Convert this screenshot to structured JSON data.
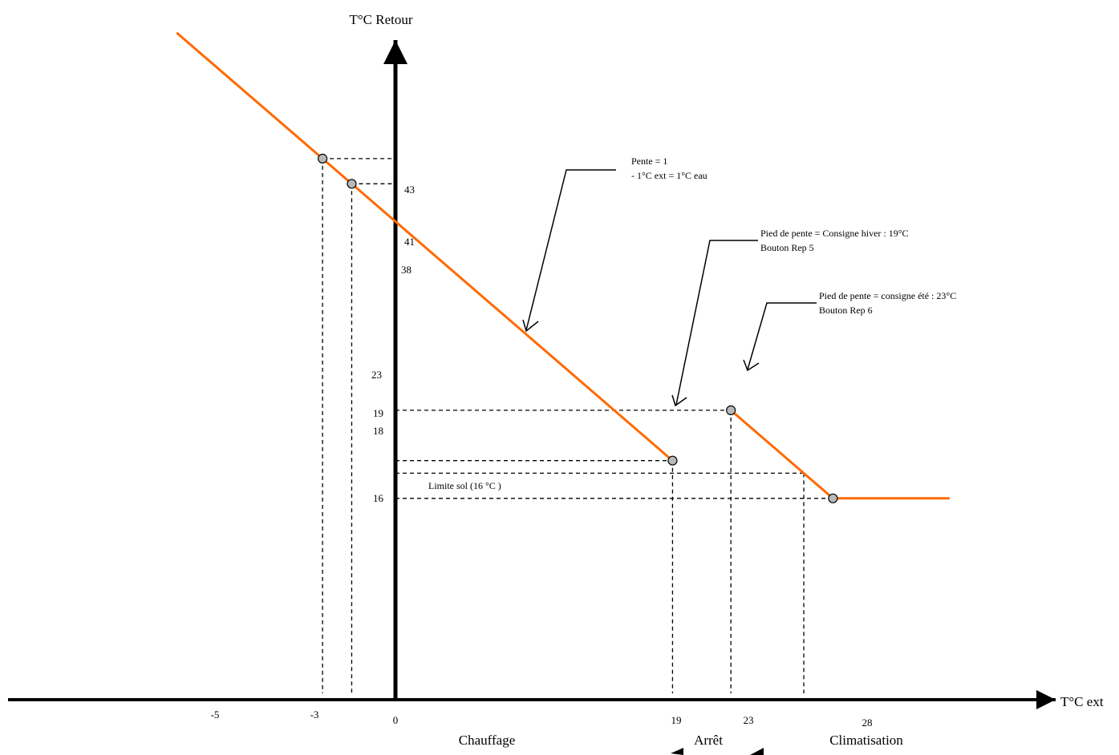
{
  "chart_data": {
    "type": "line",
    "title": "",
    "xlabel": "T°C ext",
    "ylabel": "T°C Retour",
    "colors": {
      "curve": "#ff6a00",
      "point_fill": "#b9b9b9",
      "axis": "#000000",
      "guide": "#000000"
    },
    "series": [
      {
        "segment": "chauffage",
        "x": [
          -15,
          -5,
          -3,
          0,
          19
        ],
        "y": [
          53,
          43,
          41,
          38,
          19
        ]
      },
      {
        "segment": "climatisation",
        "x": [
          23,
          28,
          30
        ],
        "y": [
          23,
          18,
          16
        ]
      },
      {
        "segment": "limite",
        "x": [
          30,
          38
        ],
        "y": [
          16,
          16
        ]
      }
    ],
    "points": [
      {
        "x": -5,
        "y": 43
      },
      {
        "x": -3,
        "y": 41
      },
      {
        "x": 19,
        "y": 19
      },
      {
        "x": 23,
        "y": 23
      },
      {
        "x": 30,
        "y": 16
      }
    ],
    "x_ticks": [
      "-5",
      "-3",
      "0",
      "19",
      "23",
      "28"
    ],
    "y_ticks": [
      "43",
      "41",
      "38",
      "23",
      "19",
      "18",
      "16"
    ],
    "annotations": {
      "pente_line1": "Pente = 1",
      "pente_line2": "- 1°C ext = 1°C eau",
      "hiver_line1": "Pied de pente = Consigne hiver : 19°C",
      "hiver_line2": "Bouton Rep 5",
      "ete_line1": "Pied de pente = consigne été : 23°C",
      "ete_line2": "Bouton Rep 6",
      "limite": "Limite sol (16 °C )"
    },
    "zones": [
      "Chauffage",
      "Arrêt",
      "Climatisation"
    ]
  }
}
